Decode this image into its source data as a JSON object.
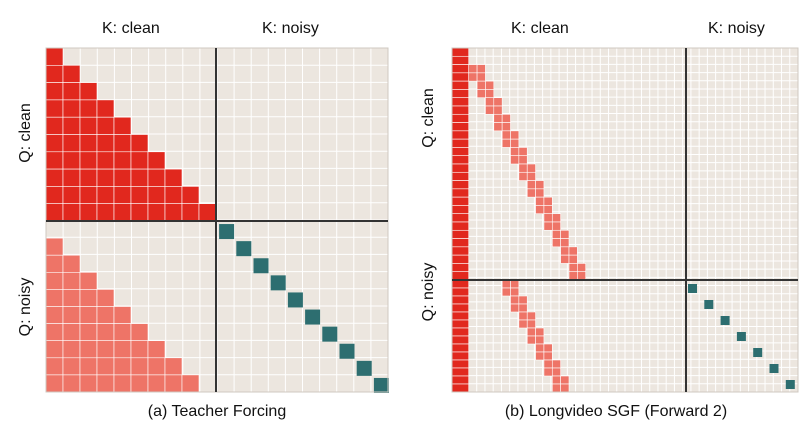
{
  "panels": [
    {
      "k_clean_label": "K: clean",
      "k_noisy_label": "K: noisy",
      "q_clean_label": "Q: clean",
      "q_noisy_label": "Q: noisy",
      "caption": "(a) Teacher Forcing",
      "matrix": {
        "clean_size": 10,
        "noisy_size": 10,
        "pattern": "teacher-forcing"
      }
    },
    {
      "k_clean_label": "K: clean",
      "k_noisy_label": "K: noisy",
      "q_clean_label": "Q: clean",
      "q_noisy_label": "Q: noisy",
      "caption": "(b) Longvideo SGF (Forward 2)",
      "matrix": {
        "clean_size": 14,
        "noisy_size": 7,
        "pattern": "longvideo-sgf"
      }
    }
  ],
  "colors": {
    "background": "#ece6df",
    "grid": "#ffffff",
    "clean_attention": "#e1281e",
    "noisy_to_clean": "#ee7467",
    "noisy_self": "#2d6e70",
    "divider": "#333333"
  }
}
